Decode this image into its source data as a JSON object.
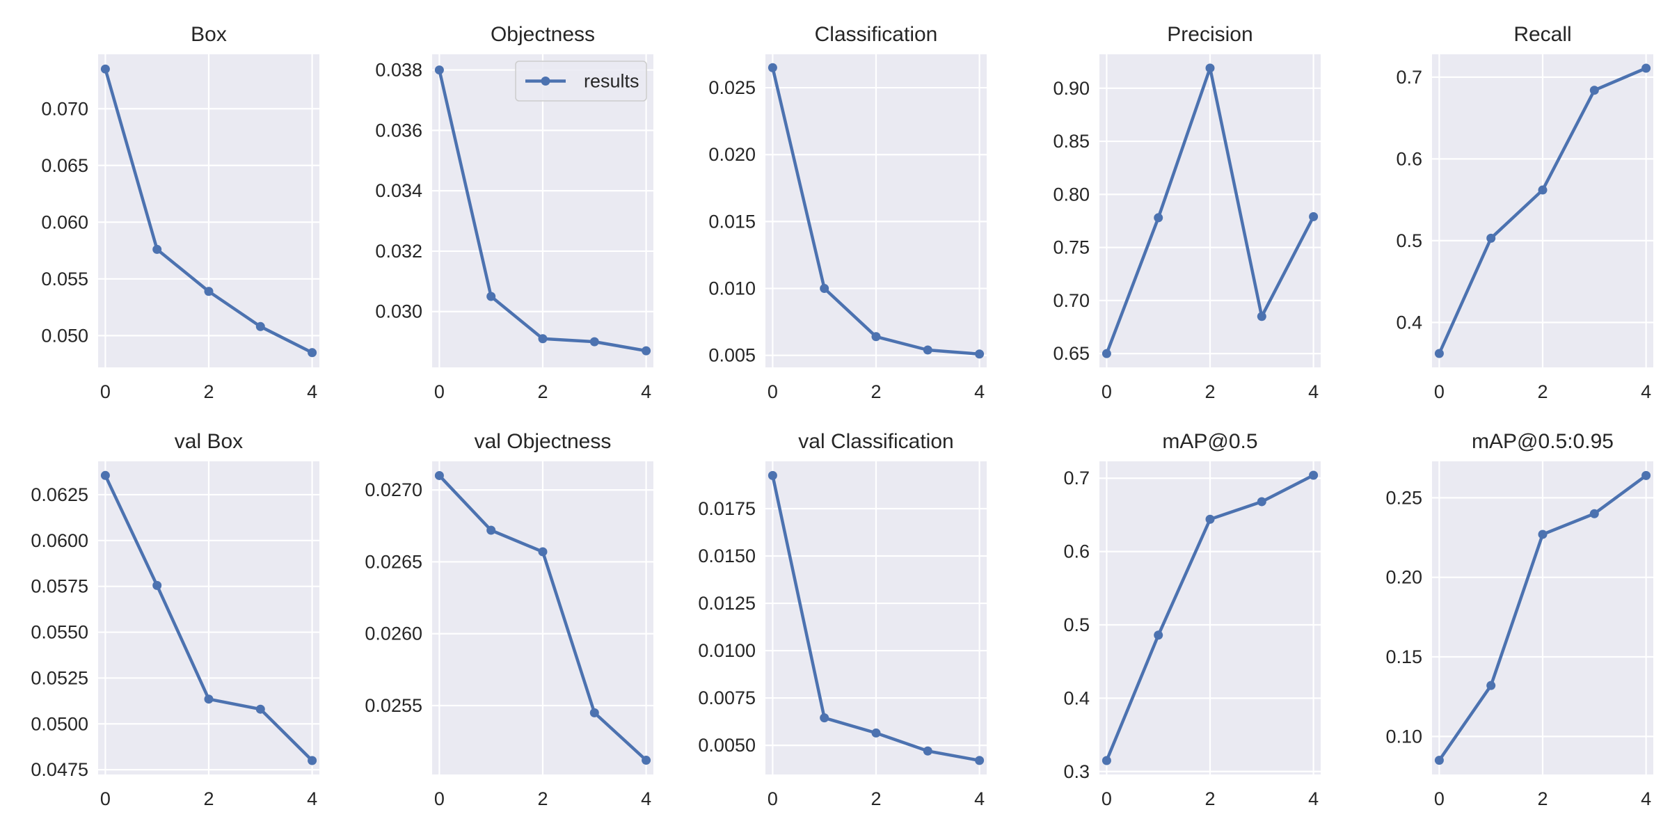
{
  "legend": {
    "label": "results",
    "panel": 1,
    "placement": "upper right"
  },
  "style": {
    "line_color": "#4c72b0",
    "axes_bg": "#eaeaf2",
    "grid_color": "#ffffff",
    "text_color": "#262626"
  },
  "chart_data": [
    {
      "type": "line",
      "title": "Box",
      "x": [
        0,
        1,
        2,
        3,
        4
      ],
      "values": [
        0.0735,
        0.0576,
        0.0539,
        0.0508,
        0.0485
      ],
      "ylim": [
        0.0472,
        0.0748
      ],
      "yticks": [
        0.05,
        0.055,
        0.06,
        0.065,
        0.07
      ],
      "ytick_labels": [
        "0.050",
        "0.055",
        "0.060",
        "0.065",
        "0.070"
      ],
      "xticks": [
        0,
        2,
        4
      ],
      "xtick_labels": [
        "0",
        "2",
        "4"
      ],
      "grid": true
    },
    {
      "type": "line",
      "title": "Objectness",
      "x": [
        0,
        1,
        2,
        3,
        4
      ],
      "values": [
        0.038,
        0.0305,
        0.0291,
        0.029,
        0.0287
      ],
      "ylim": [
        0.02815,
        0.03852
      ],
      "yticks": [
        0.03,
        0.032,
        0.034,
        0.036,
        0.038
      ],
      "ytick_labels": [
        "0.030",
        "0.032",
        "0.034",
        "0.036",
        "0.038"
      ],
      "xticks": [
        0,
        2,
        4
      ],
      "xtick_labels": [
        "0",
        "2",
        "4"
      ],
      "grid": true
    },
    {
      "type": "line",
      "title": "Classification",
      "x": [
        0,
        1,
        2,
        3,
        4
      ],
      "values": [
        0.0265,
        0.01,
        0.0064,
        0.0054,
        0.0051
      ],
      "ylim": [
        0.0041,
        0.0275
      ],
      "yticks": [
        0.005,
        0.01,
        0.015,
        0.02,
        0.025
      ],
      "ytick_labels": [
        "0.005",
        "0.010",
        "0.015",
        "0.020",
        "0.025"
      ],
      "xticks": [
        0,
        2,
        4
      ],
      "xtick_labels": [
        "0",
        "2",
        "4"
      ],
      "grid": true
    },
    {
      "type": "line",
      "title": "Precision",
      "x": [
        0,
        1,
        2,
        3,
        4
      ],
      "values": [
        0.65,
        0.778,
        0.919,
        0.685,
        0.779
      ],
      "ylim": [
        0.637,
        0.932
      ],
      "yticks": [
        0.65,
        0.7,
        0.75,
        0.8,
        0.85,
        0.9
      ],
      "ytick_labels": [
        "0.65",
        "0.70",
        "0.75",
        "0.80",
        "0.85",
        "0.90"
      ],
      "xticks": [
        0,
        2,
        4
      ],
      "xtick_labels": [
        "0",
        "2",
        "4"
      ],
      "grid": true
    },
    {
      "type": "line",
      "title": "Recall",
      "x": [
        0,
        1,
        2,
        3,
        4
      ],
      "values": [
        0.362,
        0.503,
        0.562,
        0.684,
        0.711
      ],
      "ylim": [
        0.345,
        0.728
      ],
      "yticks": [
        0.4,
        0.5,
        0.6,
        0.7
      ],
      "ytick_labels": [
        "0.4",
        "0.5",
        "0.6",
        "0.7"
      ],
      "xticks": [
        0,
        2,
        4
      ],
      "xtick_labels": [
        "0",
        "2",
        "4"
      ],
      "grid": true
    },
    {
      "type": "line",
      "title": "val Box",
      "x": [
        0,
        1,
        2,
        3,
        4
      ],
      "values": [
        0.06355,
        0.05755,
        0.05135,
        0.0508,
        0.048
      ],
      "ylim": [
        0.04724,
        0.06432
      ],
      "yticks": [
        0.0475,
        0.05,
        0.0525,
        0.055,
        0.0575,
        0.06,
        0.0625
      ],
      "ytick_labels": [
        "0.0475",
        "0.0500",
        "0.0525",
        "0.0550",
        "0.0575",
        "0.0600",
        "0.0625"
      ],
      "xticks": [
        0,
        2,
        4
      ],
      "xtick_labels": [
        "0",
        "2",
        "4"
      ],
      "grid": true
    },
    {
      "type": "line",
      "title": "val Objectness",
      "x": [
        0,
        1,
        2,
        3,
        4
      ],
      "values": [
        0.0271,
        0.02672,
        0.02657,
        0.02545,
        0.02512
      ],
      "ylim": [
        0.025021,
        0.027199
      ],
      "yticks": [
        0.0255,
        0.026,
        0.0265,
        0.027
      ],
      "ytick_labels": [
        "0.0255",
        "0.0260",
        "0.0265",
        "0.0270"
      ],
      "xticks": [
        0,
        2,
        4
      ],
      "xtick_labels": [
        "0",
        "2",
        "4"
      ],
      "grid": true
    },
    {
      "type": "line",
      "title": "val Classification",
      "x": [
        0,
        1,
        2,
        3,
        4
      ],
      "values": [
        0.01925,
        0.00645,
        0.00565,
        0.0047,
        0.0042
      ],
      "ylim": [
        0.00346,
        0.02
      ],
      "yticks": [
        0.005,
        0.0075,
        0.01,
        0.0125,
        0.015,
        0.0175
      ],
      "ytick_labels": [
        "0.0050",
        "0.0075",
        "0.0100",
        "0.0125",
        "0.0150",
        "0.0175"
      ],
      "xticks": [
        0,
        2,
        4
      ],
      "xtick_labels": [
        "0",
        "2",
        "4"
      ],
      "grid": true
    },
    {
      "type": "line",
      "title": "mAP@0.5",
      "x": [
        0,
        1,
        2,
        3,
        4
      ],
      "values": [
        0.315,
        0.486,
        0.644,
        0.668,
        0.704
      ],
      "ylim": [
        0.296,
        0.723
      ],
      "yticks": [
        0.3,
        0.4,
        0.5,
        0.6,
        0.7
      ],
      "ytick_labels": [
        "0.3",
        "0.4",
        "0.5",
        "0.6",
        "0.7"
      ],
      "xticks": [
        0,
        2,
        4
      ],
      "xtick_labels": [
        "0",
        "2",
        "4"
      ],
      "grid": true
    },
    {
      "type": "line",
      "title": "mAP@0.5:0.95",
      "x": [
        0,
        1,
        2,
        3,
        4
      ],
      "values": [
        0.085,
        0.132,
        0.227,
        0.24,
        0.264
      ],
      "ylim": [
        0.0761,
        0.2729
      ],
      "yticks": [
        0.1,
        0.15,
        0.2,
        0.25
      ],
      "ytick_labels": [
        "0.10",
        "0.15",
        "0.20",
        "0.25"
      ],
      "xticks": [
        0,
        2,
        4
      ],
      "xtick_labels": [
        "0",
        "2",
        "4"
      ],
      "grid": true
    }
  ]
}
